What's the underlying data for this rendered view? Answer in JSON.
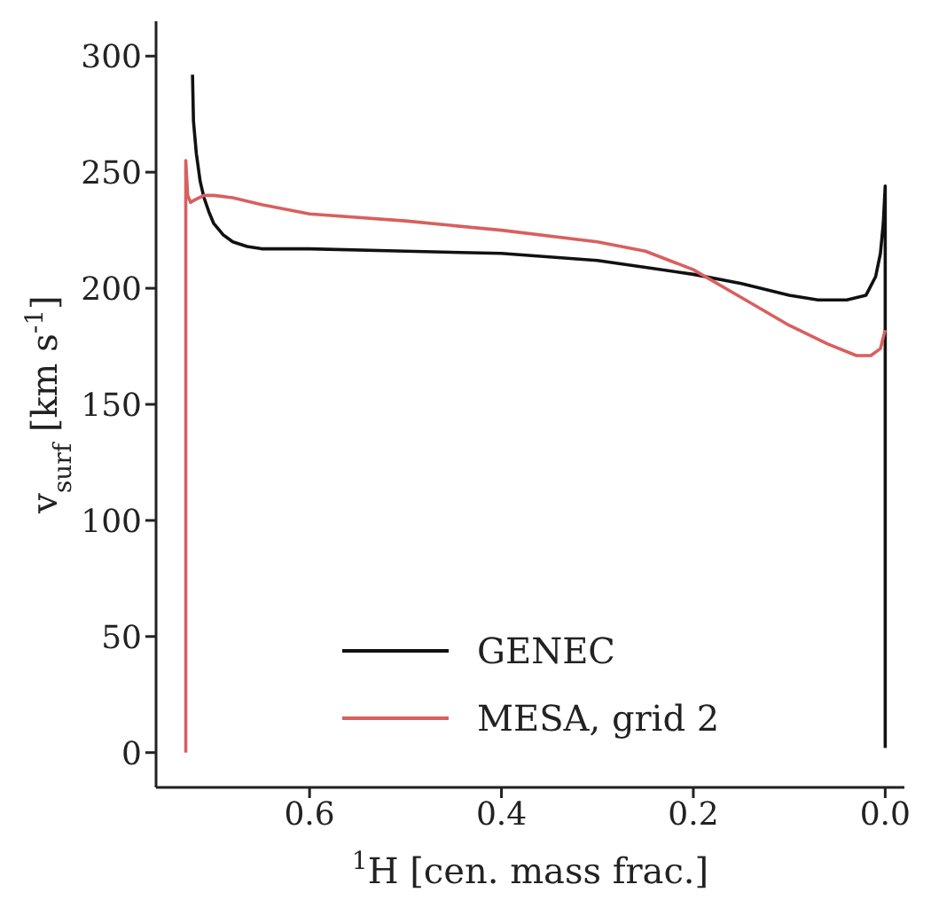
{
  "chart_data": {
    "type": "line",
    "xlabel": "$^{1}$H [cen. mass frac.]",
    "ylabel": "v$_{surf}$ [km s$^{-1}$]",
    "xlim": [
      0.76,
      -0.02
    ],
    "xticks": [
      0.6,
      0.4,
      0.2,
      {
        "value": 0,
        "label": "0.0"
      }
    ],
    "ylim": [
      -15,
      315
    ],
    "yticks": [
      0,
      50,
      100,
      150,
      200,
      250,
      300
    ],
    "legend": "bottom",
    "grid": false,
    "marker": "none",
    "line_style": "solid",
    "series": [
      {
        "name": "GENEC",
        "color": "#111111",
        "x": [
          0.722,
          0.721,
          0.718,
          0.714,
          0.71,
          0.705,
          0.7,
          0.69,
          0.68,
          0.665,
          0.65,
          0.6,
          0.5,
          0.4,
          0.3,
          0.25,
          0.2,
          0.15,
          0.1,
          0.07,
          0.04,
          0.02,
          0.01,
          0.005,
          0.002,
          0,
          0
        ],
        "values": [
          292,
          272,
          258,
          246,
          239,
          233,
          228,
          223,
          220,
          218,
          217,
          217,
          216,
          215,
          212,
          209,
          206,
          202,
          197,
          195,
          195,
          197,
          205,
          215,
          228,
          244,
          2
        ]
      },
      {
        "name": "MESA, grid 2",
        "color": "#d95f5f",
        "x": [
          0.729,
          0.729,
          0.727,
          0.724,
          0.72,
          0.71,
          0.7,
          0.68,
          0.65,
          0.6,
          0.5,
          0.4,
          0.3,
          0.25,
          0.2,
          0.15,
          0.1,
          0.06,
          0.03,
          0.015,
          0.005,
          0
        ],
        "values": [
          0,
          255,
          240,
          237,
          238,
          240,
          240,
          239,
          236,
          232,
          229,
          225,
          220,
          216,
          208,
          196,
          184,
          176,
          171,
          171,
          174,
          182
        ]
      }
    ]
  }
}
